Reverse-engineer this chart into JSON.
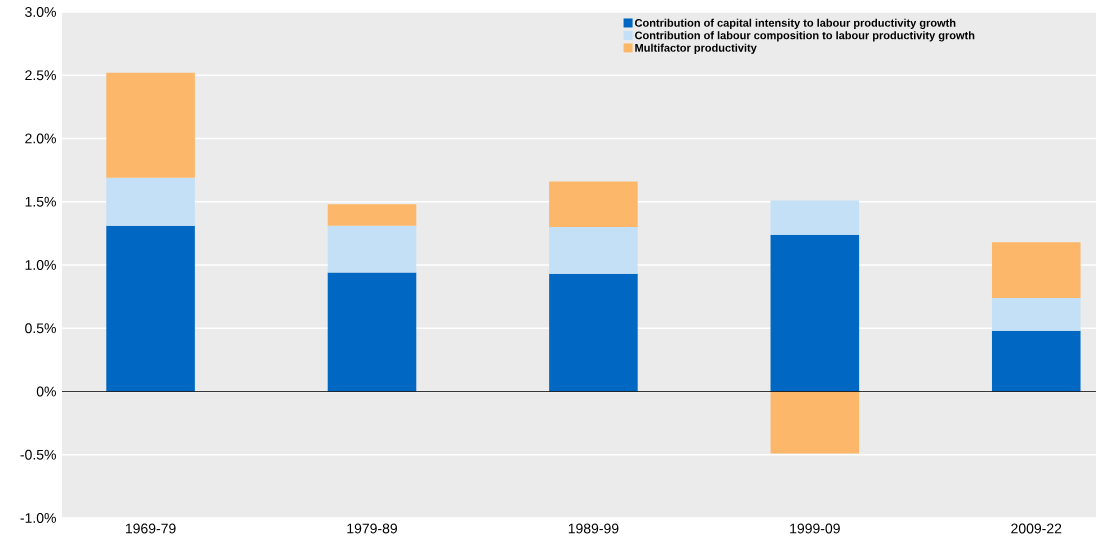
{
  "chart_data": {
    "type": "bar",
    "stacked": true,
    "categories": [
      "1969-79",
      "1979-89",
      "1989-99",
      "1999-09",
      "2009-22"
    ],
    "series": [
      {
        "name": "Contribution of capital intensity to labour productivity growth",
        "color": "#0068c2",
        "values": [
          1.31,
          0.94,
          0.93,
          1.24,
          0.48
        ]
      },
      {
        "name": "Contribution of labour composition to labour productivity growth",
        "color": "#c3e0f6",
        "values": [
          0.38,
          0.37,
          0.37,
          0.27,
          0.26
        ]
      },
      {
        "name": "Multifactor productivity",
        "color": "#fcb76a",
        "values": [
          0.83,
          0.17,
          0.36,
          -0.49,
          0.44
        ]
      }
    ],
    "ylim": [
      -1.0,
      3.0
    ],
    "yticks": [
      {
        "value": -1.0,
        "label": "-1.0%"
      },
      {
        "value": -0.5,
        "label": "-0.5%"
      },
      {
        "value": 0,
        "label": "0%"
      },
      {
        "value": 0.5,
        "label": "0.5%"
      },
      {
        "value": 1.0,
        "label": "1.0%"
      },
      {
        "value": 1.5,
        "label": "1.5%"
      },
      {
        "value": 2.0,
        "label": "2.0%"
      },
      {
        "value": 2.5,
        "label": "2.5%"
      },
      {
        "value": 3.0,
        "label": "3.0%"
      }
    ],
    "grid": "y",
    "legend": "top right"
  }
}
